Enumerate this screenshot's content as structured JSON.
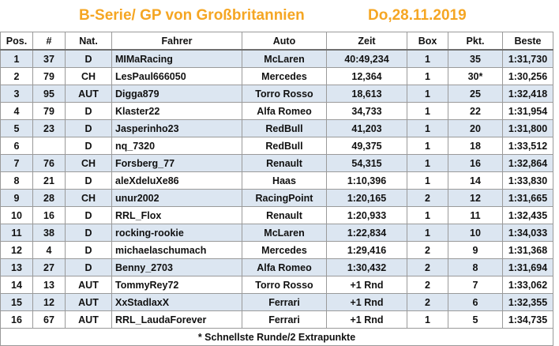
{
  "header": {
    "title": "B-Serie/ GP von Großbritannien",
    "date": "Do,28.11.2019"
  },
  "columns": [
    "Pos.",
    "#",
    "Nat.",
    "Fahrer",
    "Auto",
    "Zeit",
    "Box",
    "Pkt.",
    "Beste"
  ],
  "rows": [
    {
      "pos": "1",
      "num": "37",
      "nat": "D",
      "driver": "MIMaRacing",
      "car": "McLaren",
      "time": "40:49,234",
      "box": "1",
      "pts": "35",
      "best": "1:31,730"
    },
    {
      "pos": "2",
      "num": "79",
      "nat": "CH",
      "driver": "LesPaul666050",
      "car": "Mercedes",
      "time": "12,364",
      "box": "1",
      "pts": "30*",
      "best": "1:30,256"
    },
    {
      "pos": "3",
      "num": "95",
      "nat": "AUT",
      "driver": "Digga879",
      "car": "Torro Rosso",
      "time": "18,613",
      "box": "1",
      "pts": "25",
      "best": "1:32,418"
    },
    {
      "pos": "4",
      "num": "79",
      "nat": "D",
      "driver": "Klaster22",
      "car": "Alfa Romeo",
      "time": "34,733",
      "box": "1",
      "pts": "22",
      "best": "1:31,954"
    },
    {
      "pos": "5",
      "num": "23",
      "nat": "D",
      "driver": "Jasperinho23",
      "car": "RedBull",
      "time": "41,203",
      "box": "1",
      "pts": "20",
      "best": "1:31,800"
    },
    {
      "pos": "6",
      "num": "",
      "nat": "D",
      "driver": "nq_7320",
      "car": "RedBull",
      "time": "49,375",
      "box": "1",
      "pts": "18",
      "best": "1:33,512"
    },
    {
      "pos": "7",
      "num": "76",
      "nat": "CH",
      "driver": "Forsberg_77",
      "car": "Renault",
      "time": "54,315",
      "box": "1",
      "pts": "16",
      "best": "1:32,864"
    },
    {
      "pos": "8",
      "num": "21",
      "nat": "D",
      "driver": "aleXdeluXe86",
      "car": "Haas",
      "time": "1:10,396",
      "box": "1",
      "pts": "14",
      "best": "1:33,830"
    },
    {
      "pos": "9",
      "num": "28",
      "nat": "CH",
      "driver": "unur2002",
      "car": "RacingPoint",
      "time": "1:20,165",
      "box": "2",
      "pts": "12",
      "best": "1:31,665"
    },
    {
      "pos": "10",
      "num": "16",
      "nat": "D",
      "driver": "RRL_Flox",
      "car": "Renault",
      "time": "1:20,933",
      "box": "1",
      "pts": "11",
      "best": "1:32,435"
    },
    {
      "pos": "11",
      "num": "38",
      "nat": "D",
      "driver": "rocking-rookie",
      "car": "McLaren",
      "time": "1:22,834",
      "box": "1",
      "pts": "10",
      "best": "1:34,033"
    },
    {
      "pos": "12",
      "num": "4",
      "nat": "D",
      "driver": "michaelaschumach",
      "car": "Mercedes",
      "time": "1:29,416",
      "box": "2",
      "pts": "9",
      "best": "1:31,368"
    },
    {
      "pos": "13",
      "num": "27",
      "nat": "D",
      "driver": "Benny_2703",
      "car": "Alfa Romeo",
      "time": "1:30,432",
      "box": "2",
      "pts": "8",
      "best": "1:31,694"
    },
    {
      "pos": "14",
      "num": "13",
      "nat": "AUT",
      "driver": "TommyRey72",
      "car": "Torro Rosso",
      "time": "+1 Rnd",
      "box": "2",
      "pts": "7",
      "best": "1:33,062"
    },
    {
      "pos": "15",
      "num": "12",
      "nat": "AUT",
      "driver": "XxStadlaxX",
      "car": "Ferrari",
      "time": "+1 Rnd",
      "box": "2",
      "pts": "6",
      "best": "1:32,355"
    },
    {
      "pos": "16",
      "num": "67",
      "nat": "AUT",
      "driver": "RRL_LaudaForever",
      "car": "Ferrari",
      "time": "+1 Rnd",
      "box": "1",
      "pts": "5",
      "best": "1:34,735"
    }
  ],
  "footnote": "* Schnellste Runde/2 Extrapunkte",
  "colors": {
    "title": "#f5a623",
    "row_band": "#dce6f1",
    "grid": "#9a9a9a"
  }
}
